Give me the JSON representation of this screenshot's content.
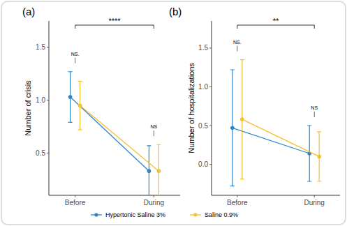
{
  "chart_data": [
    {
      "type": "line",
      "title": "(a)",
      "y_label": "Number of crisis",
      "categories": [
        "Before",
        "During"
      ],
      "series": [
        {
          "name": "Hypertonic Saline 3%",
          "color": "#2e86c8",
          "marker": "circle",
          "values": [
            1.03,
            0.33
          ],
          "errors": [
            0.24,
            0.24
          ]
        },
        {
          "name": "Saline 0.9%",
          "color": "#f2c12e",
          "marker": "circle",
          "values": [
            0.95,
            0.33
          ],
          "errors": [
            0.23,
            0.25
          ]
        }
      ],
      "ylim": [
        0.1,
        1.75
      ],
      "yticks": [
        0.5,
        {
          "value": 1,
          "label": "1.0"
        },
        1.5
      ],
      "annotations": [
        {
          "text": "****",
          "between": [
            "Before",
            "During"
          ]
        },
        {
          "text": "NS.",
          "at": "Before"
        },
        {
          "text": "NS",
          "at": "During"
        }
      ],
      "legend": "bottom",
      "grid": false
    },
    {
      "type": "line",
      "title": "(b)",
      "y_label": "Number of hospitalizations",
      "categories": [
        "Before",
        "During"
      ],
      "series": [
        {
          "name": "Hypertonic Saline 3%",
          "color": "#2e86c8",
          "marker": "circle",
          "values": [
            0.47,
            0.14
          ],
          "errors": [
            0.75,
            0.36
          ]
        },
        {
          "name": "Saline 0.9%",
          "color": "#f2c12e",
          "marker": "circle",
          "values": [
            0.58,
            0.1
          ],
          "errors": [
            0.77,
            0.32
          ]
        }
      ],
      "ylim": [
        -0.4,
        1.85
      ],
      "yticks": [
        {
          "value": 0,
          "label": "0.0"
        },
        0.5,
        {
          "value": 1,
          "label": "1.0"
        },
        1.5
      ],
      "annotations": [
        {
          "text": "**",
          "between": [
            "Before",
            "During"
          ]
        },
        {
          "text": "NS.",
          "at": "Before"
        },
        {
          "text": "NS",
          "at": "During"
        }
      ],
      "legend": "bottom",
      "grid": false
    }
  ]
}
